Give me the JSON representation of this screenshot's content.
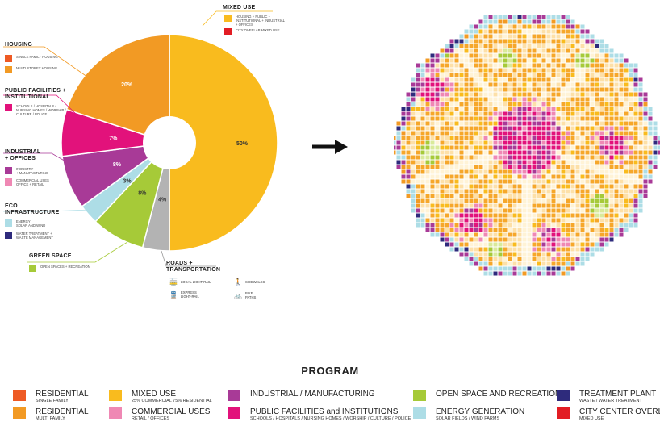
{
  "chart_data": {
    "type": "pie",
    "style": "donut",
    "slices": [
      {
        "label": "MIXED USE",
        "value": 50,
        "display": "50%",
        "color": "#f9bb1e"
      },
      {
        "label": "ROADS + TRANSPORTATION",
        "value": 4,
        "display": "4%",
        "color": "#b3b3b3"
      },
      {
        "label": "GREEN SPACE",
        "value": 8,
        "display": "8%",
        "color": "#a6ca38"
      },
      {
        "label": "ECO INFRASTRUCTURE",
        "value": 3,
        "display": "3%",
        "color": "#addde6"
      },
      {
        "label": "INDUSTRIAL + OFFICES",
        "value": 8,
        "display": "8%",
        "color": "#a83a97"
      },
      {
        "label": "PUBLIC FACILITIES + INSTITUTIONAL",
        "value": 7,
        "display": "7%",
        "color": "#e2127b"
      },
      {
        "label": "HOUSING",
        "value": 20,
        "display": "20%",
        "color": "#f29a24"
      }
    ]
  },
  "categories": {
    "mixed_use": {
      "title": "MIXED USE",
      "items": [
        {
          "text": "HOUSING + PUBLIC +\nINSTITUTIONAL + INDUSTRIAL\n+ OFFICES",
          "color": "#f9bb1e"
        },
        {
          "text": "CITY OVERLAP MIXED USE",
          "color": "#e21d24"
        }
      ]
    },
    "housing": {
      "title": "HOUSING",
      "items": [
        {
          "text": "SINGLE FAMILY HOUSING",
          "color": "#ee5a24"
        },
        {
          "text": "MULTI STOREY HOUSING",
          "color": "#f29a24"
        }
      ]
    },
    "public": {
      "title": "PUBLIC FACILITIES +\nINSTITUTIONAL",
      "items": [
        {
          "text": "SCHOOLS / HOSPITALS /\nNURSING HOMES / WORSHIP /\nCULTURE / POLICE",
          "color": "#e2127b"
        }
      ]
    },
    "industrial": {
      "title": "INDUSTRIAL\n+ OFFICES",
      "items": [
        {
          "text": "INDUSTRY\n+ MANUFACTURING",
          "color": "#a83a97"
        },
        {
          "text": "COMMERCIAL USES\nOFFICE + RETAIL",
          "color": "#ef88b4"
        }
      ]
    },
    "eco": {
      "title": "ECO\nINFRASTRUCTURE",
      "items": [
        {
          "text": "ENERGY\nSOLAR AND WIND",
          "color": "#addde6"
        },
        {
          "text": "WATER TREATMENT +\nWASTE MANAGEMENT",
          "color": "#2e2b7c"
        }
      ]
    },
    "green": {
      "title": "GREEN SPACE",
      "items": [
        {
          "text": "OPEN SPACES + RECREATION",
          "color": "#a6ca38"
        }
      ]
    },
    "roads": {
      "title": "ROADS +\nTRANSPORTATION",
      "items": [
        {
          "icon": "🚋",
          "icon_name": "tram-icon",
          "text": "LOCAL LIGHT-RAIL"
        },
        {
          "icon": "🚶",
          "icon_name": "pedestrian-icon",
          "text": "SIDEWALKS"
        },
        {
          "icon": "🚆",
          "icon_name": "train-icon",
          "text": "EXPRESS\nLIGHT-RAIL"
        },
        {
          "icon": "🚲",
          "icon_name": "bike-icon",
          "text": "BIKE PATHS"
        }
      ]
    }
  },
  "program": {
    "title": "PROGRAM",
    "items": [
      {
        "main": "RESIDENTIAL",
        "sub": "SINGLE FAMILY",
        "color": "#ee5a24"
      },
      {
        "main": "RESIDENTIAL",
        "sub": "MULTI FAMILY",
        "color": "#f29a24"
      },
      {
        "main": "MIXED USE",
        "sub": "25% COMMERCIAL 75% RESIDENTIAL",
        "color": "#f9bb1e"
      },
      {
        "main": "COMMERCIAL USES",
        "sub": "RETAIL / OFFICES",
        "color": "#ef88b4"
      },
      {
        "main": "INDUSTRIAL / MANUFACTURING",
        "sub": "",
        "color": "#a83a97"
      },
      {
        "main": "PUBLIC FACILITIES and INSTITUTIONS",
        "sub": "SCHOOLS / HOSPITALS / NURSING HOMES / WORSHIP / CULTURE / POLICE",
        "color": "#e2127b"
      },
      {
        "main": "OPEN SPACE AND RECREATION",
        "sub": "",
        "color": "#a6ca38"
      },
      {
        "main": "ENERGY GENERATION",
        "sub": "SOLAR FIELDS / WIND FARMS",
        "color": "#addde6"
      },
      {
        "main": "TREATMENT PLANT",
        "sub": "WASTE / WATER TREATMENT",
        "color": "#2e2b7c"
      },
      {
        "main": "CITY CENTER OVERLAP",
        "sub": "MIXED USE",
        "color": "#e21d24"
      }
    ]
  },
  "colors": {
    "orange_ring": "#f6a72a",
    "light_orange": "#fde0a8",
    "cream": "#fff3d6"
  }
}
